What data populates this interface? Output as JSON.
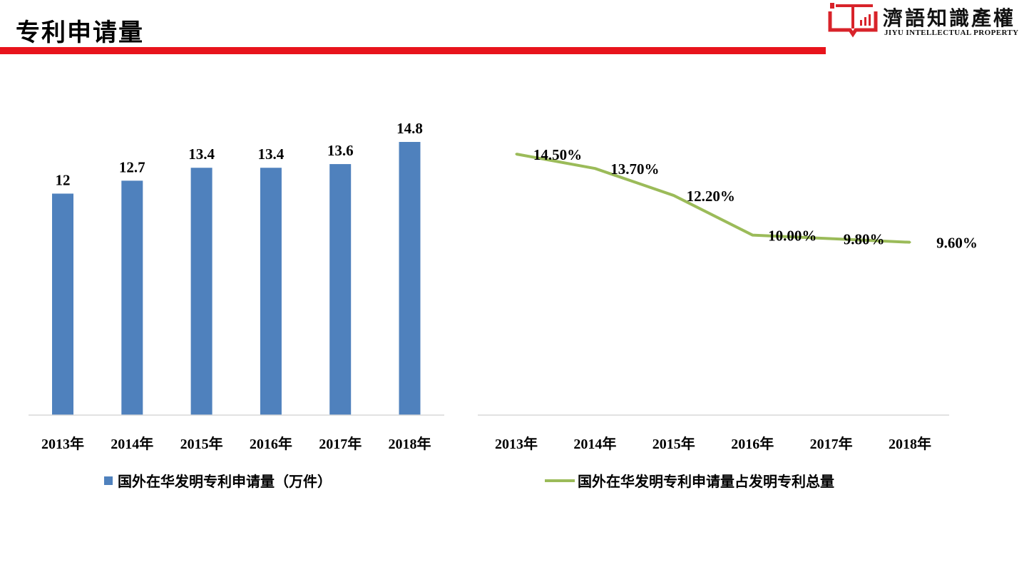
{
  "page": {
    "title": "专利申请量",
    "logo": {
      "name_cn": "濟語知識產權",
      "name_en": "JIYU INTELLECTUAL PROPERTY"
    }
  },
  "colors": {
    "accent_red": "#e8141c",
    "bar_blue": "#4f81bd",
    "line_green": "#9bbb59",
    "axis_grey": "#d9d9d9"
  },
  "chart_data": [
    {
      "type": "bar",
      "categories": [
        "2013年",
        "2014年",
        "2015年",
        "2016年",
        "2017年",
        "2018年"
      ],
      "values": [
        12,
        12.7,
        13.4,
        13.4,
        13.6,
        14.8
      ],
      "value_labels": [
        "12",
        "12.7",
        "13.4",
        "13.4",
        "13.6",
        "14.8"
      ],
      "legend": "国外在华发明专利申请量（万件）",
      "ylim": [
        0,
        16
      ],
      "grid": false
    },
    {
      "type": "line",
      "categories": [
        "2013年",
        "2014年",
        "2015年",
        "2016年",
        "2017年",
        "2018年"
      ],
      "values": [
        14.5,
        13.7,
        12.2,
        10.0,
        9.8,
        9.6
      ],
      "value_labels": [
        "14.50%",
        "13.70%",
        "12.20%",
        "10.00%",
        "9.80%",
        "9.60%"
      ],
      "legend": "国外在华发明专利申请量占发明专利总量",
      "ylim": [
        0,
        14.9
      ],
      "grid": false
    }
  ]
}
